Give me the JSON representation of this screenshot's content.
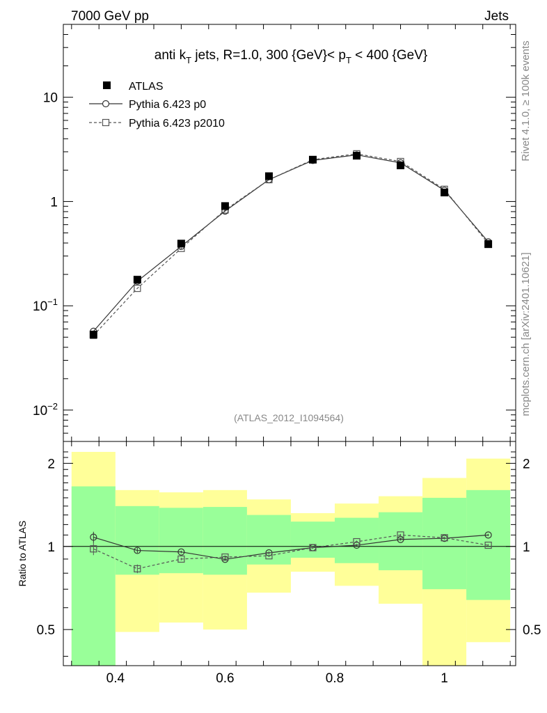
{
  "header": {
    "energy_label": "7000 GeV pp",
    "category_label": "Jets"
  },
  "side_labels": {
    "rivet": "Rivet 4.1.0, ≥ 100k events",
    "source": "mcplots.cern.ch [arXiv:2401.10621]"
  },
  "chart_data": [
    {
      "type": "scatter",
      "panel": "main",
      "title": "anti k_T jets, R=1.0, 300 {GeV}< p_T < 400 {GeV}",
      "title_parts": {
        "a": "anti k",
        "a_sub": "T",
        "b": " jets, R=1.0,  300 {GeV}< p",
        "b_sub": "T",
        "c": " < 400 {GeV}"
      },
      "analysis_tag": "(ATLAS_2012_I1094564)",
      "yscale": "log",
      "xlim": [
        0.305,
        1.13
      ],
      "ylim": [
        0.005,
        50
      ],
      "y_tick_labels": [
        {
          "value": 10,
          "base": "10",
          "exp": ""
        },
        {
          "value": 1,
          "base": "1",
          "exp": ""
        },
        {
          "value": 0.1,
          "base": "10",
          "exp": "−1"
        },
        {
          "value": 0.01,
          "base": "10",
          "exp": "−2"
        }
      ],
      "x": [
        0.36,
        0.44,
        0.52,
        0.6,
        0.68,
        0.76,
        0.84,
        0.92,
        1.0,
        1.08
      ],
      "series": [
        {
          "name": "ATLAS",
          "marker": "filled-square",
          "values": [
            0.053,
            0.178,
            0.395,
            0.905,
            1.75,
            2.52,
            2.75,
            2.22,
            1.22,
            0.39
          ]
        },
        {
          "name": "Pythia 6.423 p0",
          "marker": "open-circle",
          "line": "solid",
          "values": [
            0.057,
            0.172,
            0.372,
            0.81,
            1.62,
            2.48,
            2.8,
            2.35,
            1.28,
            0.41
          ]
        },
        {
          "name": "Pythia 6.423 p2010",
          "marker": "open-square",
          "line": "dashed",
          "values": [
            0.052,
            0.147,
            0.355,
            0.83,
            1.62,
            2.52,
            2.87,
            2.42,
            1.31,
            0.395
          ]
        }
      ],
      "legend": [
        "ATLAS",
        "Pythia 6.423 p0",
        "Pythia 6.423 p2010"
      ],
      "legend_position": "top-left"
    },
    {
      "type": "scatter",
      "panel": "ratio",
      "ylabel": "Ratio to ATLAS",
      "xlim": [
        0.305,
        1.13
      ],
      "ylim": [
        0.37,
        2.4
      ],
      "x_tick_labels": [
        "0.4",
        "0.6",
        "0.8",
        "1"
      ],
      "y_tick_labels": [
        "2",
        "1",
        "0.5"
      ],
      "y_ticks": [
        2,
        1,
        0.5
      ],
      "x_ticks": [
        0.4,
        0.6,
        0.8,
        1.0
      ],
      "bin_edges": [
        0.32,
        0.4,
        0.48,
        0.56,
        0.64,
        0.72,
        0.8,
        0.88,
        0.96,
        1.04,
        1.12
      ],
      "band_1sigma": {
        "low": [
          0.3,
          0.79,
          0.8,
          0.79,
          0.86,
          0.91,
          0.87,
          0.82,
          0.7,
          0.64
        ],
        "high": [
          1.65,
          1.4,
          1.38,
          1.39,
          1.3,
          1.23,
          1.27,
          1.33,
          1.5,
          1.6
        ]
      },
      "band_2sigma": {
        "low": [
          0.3,
          0.49,
          0.53,
          0.5,
          0.68,
          0.81,
          0.72,
          0.62,
          0.3,
          0.45
        ],
        "high": [
          2.2,
          1.6,
          1.57,
          1.6,
          1.48,
          1.32,
          1.43,
          1.52,
          1.77,
          2.08
        ]
      },
      "x": [
        0.36,
        0.44,
        0.52,
        0.6,
        0.68,
        0.76,
        0.84,
        0.92,
        1.0,
        1.08
      ],
      "series": [
        {
          "name": "Pythia 6.423 p0",
          "marker": "open-circle",
          "line": "solid",
          "values": [
            1.08,
            0.967,
            0.955,
            0.898,
            0.948,
            0.99,
            1.01,
            1.06,
            1.07,
            1.1
          ],
          "errors": [
            0.05,
            0.02,
            0.01,
            0.01,
            0.01,
            0.01,
            0.01,
            0.01,
            0.01,
            0.01
          ]
        },
        {
          "name": "Pythia 6.423 p2010",
          "marker": "open-square",
          "line": "dashed",
          "values": [
            0.98,
            0.83,
            0.9,
            0.915,
            0.925,
            0.99,
            1.04,
            1.1,
            1.075,
            1.01
          ],
          "errors": [
            0.05,
            0.03,
            0.01,
            0.01,
            0.01,
            0.01,
            0.01,
            0.01,
            0.01,
            0.01
          ]
        }
      ]
    }
  ],
  "colors": {
    "band_1sigma": "#99ff99",
    "band_2sigma": "#ffff99",
    "data": "#000000",
    "mc_p0": "#333333",
    "mc_p2010": "#555555",
    "annotation": "#888888"
  }
}
